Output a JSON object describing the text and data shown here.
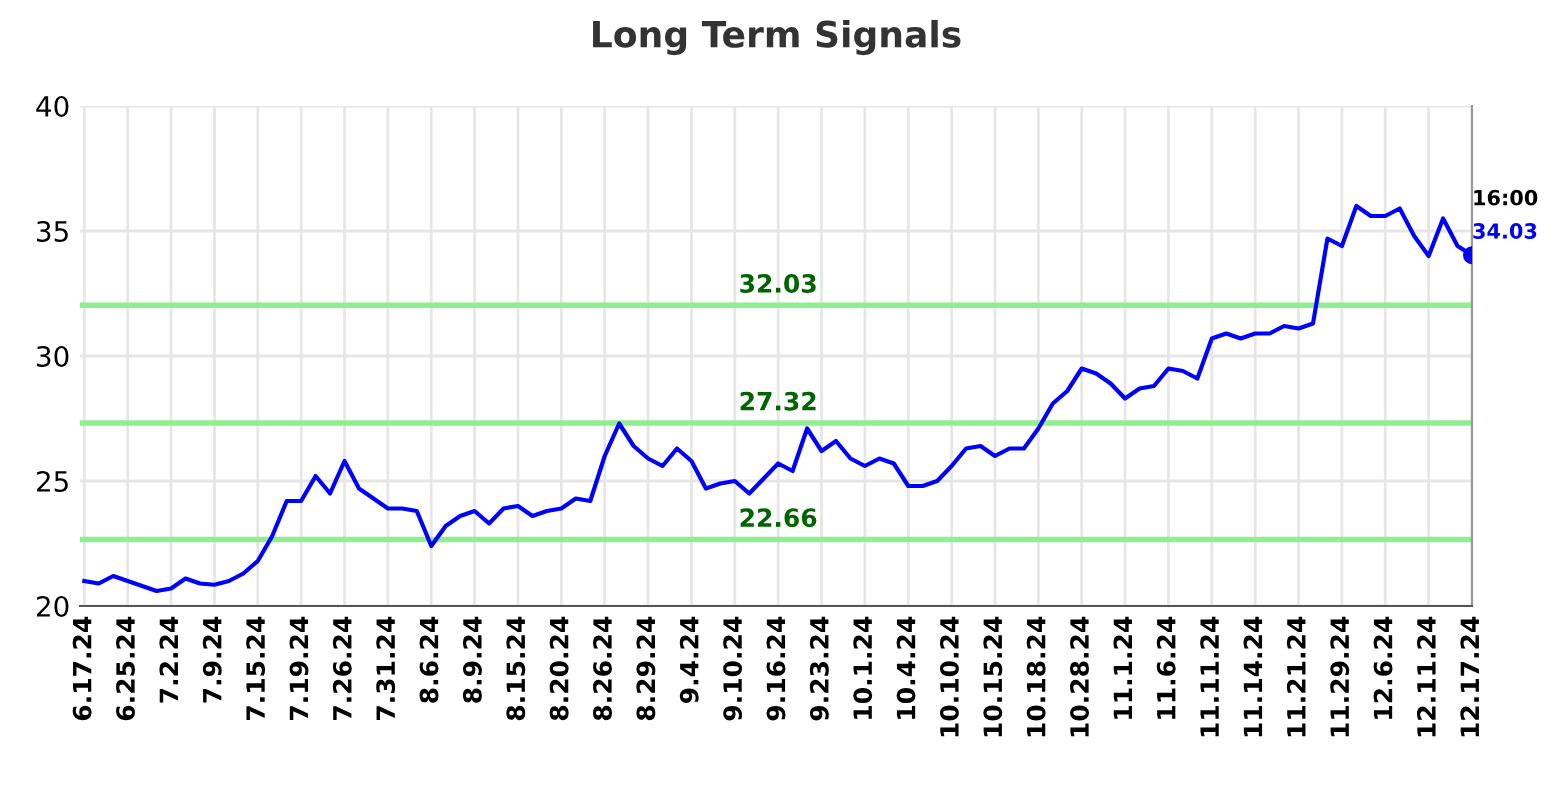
{
  "chart_data": {
    "type": "line",
    "title": "Long Term Signals",
    "categories": [
      "6.17.24",
      null,
      null,
      "6.25.24",
      null,
      null,
      "7.2.24",
      null,
      null,
      "7.9.24",
      null,
      null,
      "7.15.24",
      null,
      null,
      "7.19.24",
      null,
      null,
      "7.26.24",
      null,
      null,
      "7.31.24",
      null,
      null,
      "8.6.24",
      null,
      null,
      "8.9.24",
      null,
      null,
      "8.15.24",
      null,
      null,
      "8.20.24",
      null,
      null,
      "8.26.24",
      null,
      null,
      "8.29.24",
      null,
      null,
      "9.4.24",
      null,
      null,
      "9.10.24",
      null,
      null,
      "9.16.24",
      null,
      null,
      "9.23.24",
      null,
      null,
      "10.1.24",
      null,
      null,
      "10.4.24",
      null,
      null,
      "10.10.24",
      null,
      null,
      "10.15.24",
      null,
      null,
      "10.18.24",
      null,
      null,
      "10.28.24",
      null,
      null,
      "11.1.24",
      null,
      null,
      "11.6.24",
      null,
      null,
      "11.11.24",
      null,
      null,
      "11.14.24",
      null,
      null,
      "11.21.24",
      null,
      null,
      "11.29.24",
      null,
      null,
      "12.6.24",
      null,
      null,
      "12.11.24",
      null,
      null,
      "12.17.24"
    ],
    "series": [
      {
        "type": "line",
        "color": "#0000ff",
        "values": [
          21.0,
          20.9,
          21.2,
          21.0,
          20.8,
          20.6,
          20.7,
          21.1,
          20.9,
          20.85,
          21.0,
          21.3,
          21.8,
          22.8,
          24.2,
          24.2,
          25.2,
          24.5,
          25.8,
          24.7,
          24.3,
          23.9,
          23.9,
          23.8,
          22.4,
          23.2,
          23.6,
          23.8,
          23.3,
          23.9,
          24.0,
          23.6,
          23.8,
          23.9,
          24.3,
          24.2,
          26.0,
          27.3,
          26.4,
          25.9,
          25.6,
          26.3,
          25.8,
          24.7,
          24.9,
          25.0,
          24.5,
          25.1,
          25.7,
          25.4,
          27.1,
          26.2,
          26.6,
          25.9,
          25.6,
          25.9,
          25.7,
          24.8,
          24.8,
          25.0,
          25.6,
          26.3,
          26.4,
          26.0,
          26.3,
          26.3,
          27.1,
          28.1,
          28.6,
          29.5,
          29.3,
          28.9,
          28.3,
          28.7,
          28.8,
          29.5,
          29.4,
          29.1,
          30.7,
          30.9,
          30.7,
          30.9,
          30.9,
          31.2,
          31.1,
          31.3,
          34.7,
          34.4,
          36.0,
          35.6,
          35.6,
          35.9,
          34.8,
          34.0,
          35.5,
          34.4,
          34.03
        ]
      },
      {
        "type": "scatter",
        "color": "#0000ff",
        "x": [
          "12.17.24"
        ],
        "values": [
          34.03
        ]
      }
    ],
    "ylim": [
      20,
      40
    ],
    "yticks": [
      20,
      25,
      30,
      35,
      40
    ],
    "grid": true,
    "line_style": "solid",
    "ref_lines": [
      {
        "axis": "y",
        "value": 32.03,
        "label": "32.03",
        "color": "#90ee90"
      },
      {
        "axis": "y",
        "value": 27.32,
        "label": "27.32",
        "color": "#90ee90"
      },
      {
        "axis": "y",
        "value": 22.66,
        "label": "22.66",
        "color": "#90ee90"
      }
    ],
    "annotations": [
      {
        "text": "16:00",
        "x": "12.17.24",
        "y": 34.03
      },
      {
        "text": "34.03",
        "x": "12.17.24",
        "y": 34.03
      }
    ]
  }
}
